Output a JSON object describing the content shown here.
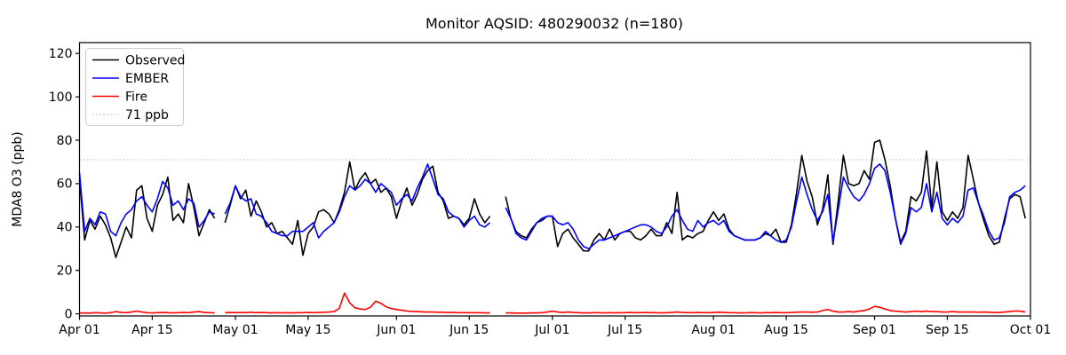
{
  "title": "Monitor AQSID: 480290032 (n=180)",
  "chart_data": {
    "type": "line",
    "title": "Monitor AQSID: 480290032 (n=180)",
    "xlabel": "",
    "ylabel": "MDA8 O3 (ppb)",
    "ylim": [
      -1,
      125
    ],
    "yticks": [
      0,
      20,
      40,
      60,
      80,
      100,
      120
    ],
    "x_total_days": 183,
    "xticks": [
      {
        "day": 0,
        "label": "Apr 01"
      },
      {
        "day": 14,
        "label": "Apr 15"
      },
      {
        "day": 30,
        "label": "May 01"
      },
      {
        "day": 44,
        "label": "May 15"
      },
      {
        "day": 61,
        "label": "Jun 01"
      },
      {
        "day": 75,
        "label": "Jun 15"
      },
      {
        "day": 91,
        "label": "Jul 01"
      },
      {
        "day": 105,
        "label": "Jul 15"
      },
      {
        "day": 122,
        "label": "Aug 01"
      },
      {
        "day": 136,
        "label": "Aug 15"
      },
      {
        "day": 153,
        "label": "Sep 01"
      },
      {
        "day": 167,
        "label": "Sep 15"
      },
      {
        "day": 183,
        "label": "Oct 01"
      }
    ],
    "grid": false,
    "legend_position": "upper left",
    "threshold": {
      "value": 71,
      "label": "71 ppb",
      "color": "#c8c8c8",
      "style": "dotted"
    },
    "legend": [
      {
        "label": "Observed",
        "color": "#000000",
        "dash": "solid"
      },
      {
        "label": "EMBER",
        "color": "#0000ff",
        "dash": "solid"
      },
      {
        "label": "Fire",
        "color": "#ff0000",
        "dash": "solid"
      },
      {
        "label": "71 ppb",
        "color": "#c8c8c8",
        "dash": "dotted"
      }
    ],
    "series": [
      {
        "name": "Observed",
        "color": "#000000",
        "values": [
          62,
          34,
          43,
          39,
          45,
          41,
          35,
          26,
          33,
          40,
          35,
          57,
          59,
          44,
          38,
          50,
          55,
          63,
          43,
          46,
          42,
          60,
          49,
          36,
          42,
          48,
          44,
          null,
          42,
          50,
          59,
          53,
          57,
          45,
          52,
          47,
          40,
          42,
          37,
          38,
          35,
          32,
          43,
          27,
          37,
          40,
          47,
          48,
          46,
          42,
          48,
          56,
          70,
          57,
          62,
          65,
          60,
          62,
          56,
          58,
          54,
          44,
          52,
          58,
          50,
          55,
          62,
          66,
          68,
          56,
          52,
          44,
          45,
          44,
          41,
          44,
          53,
          46,
          42,
          45,
          null,
          null,
          54,
          44,
          38,
          36,
          35,
          39,
          42,
          43,
          45,
          45,
          31,
          37,
          39,
          35,
          32,
          29,
          29,
          34,
          37,
          34,
          39,
          34,
          37,
          38,
          38,
          35,
          34,
          36,
          39,
          36,
          36,
          42,
          37,
          56,
          34,
          36,
          35,
          37,
          38,
          43,
          47,
          43,
          46,
          39,
          36,
          35,
          34,
          34,
          34,
          35,
          37,
          36,
          39,
          33,
          33,
          41,
          56,
          73,
          61,
          54,
          41,
          48,
          64,
          32,
          52,
          73,
          60,
          59,
          60,
          66,
          62,
          79,
          80,
          71,
          59,
          44,
          33,
          38,
          54,
          52,
          56,
          75,
          49,
          70,
          47,
          43,
          47,
          44,
          49,
          73,
          62,
          51,
          43,
          36,
          32,
          33,
          44,
          53,
          55,
          54,
          44
        ]
      },
      {
        "name": "EMBER",
        "color": "#0000ff",
        "values": [
          65,
          38,
          44,
          41,
          47,
          46,
          38,
          36,
          42,
          46,
          48,
          52,
          54,
          50,
          47,
          53,
          61,
          58,
          50,
          52,
          48,
          53,
          51,
          40,
          43,
          47,
          46,
          null,
          46,
          51,
          59,
          54,
          52,
          53,
          46,
          45,
          42,
          38,
          37,
          36,
          36,
          38,
          38,
          38,
          40,
          42,
          35,
          38,
          40,
          42,
          47,
          54,
          59,
          57,
          59,
          62,
          60,
          56,
          60,
          58,
          56,
          50,
          53,
          55,
          52,
          58,
          63,
          69,
          62,
          55,
          53,
          47,
          45,
          44,
          40,
          43,
          45,
          41,
          40,
          42,
          null,
          null,
          49,
          44,
          37,
          35,
          34,
          38,
          42,
          44,
          45,
          45,
          42,
          41,
          42,
          39,
          34,
          31,
          30,
          32,
          34,
          34,
          35,
          36,
          37,
          38,
          39,
          40,
          41,
          41,
          40,
          38,
          37,
          40,
          45,
          48,
          43,
          39,
          38,
          43,
          40,
          42,
          43,
          41,
          43,
          38,
          36,
          35,
          34,
          34,
          34,
          35,
          38,
          36,
          34,
          33,
          34,
          40,
          52,
          63,
          55,
          48,
          43,
          47,
          55,
          33,
          48,
          63,
          58,
          54,
          52,
          55,
          60,
          67,
          69,
          66,
          56,
          44,
          32,
          37,
          49,
          47,
          49,
          60,
          47,
          56,
          44,
          41,
          44,
          42,
          45,
          57,
          58,
          51,
          45,
          38,
          34,
          35,
          42,
          54,
          56,
          57,
          59
        ]
      },
      {
        "name": "Fire",
        "color": "#ff0000",
        "values": [
          0.3,
          0.4,
          0.3,
          0.5,
          0.4,
          0.3,
          0.5,
          1.0,
          0.6,
          0.5,
          0.8,
          1.2,
          0.8,
          0.5,
          0.4,
          0.5,
          0.6,
          0.5,
          0.4,
          0.5,
          0.6,
          0.5,
          0.8,
          1.0,
          0.6,
          0.5,
          0.4,
          null,
          0.5,
          0.6,
          0.5,
          0.6,
          0.5,
          0.7,
          0.5,
          0.6,
          0.5,
          0.4,
          0.5,
          0.4,
          0.5,
          0.4,
          0.5,
          0.5,
          0.6,
          0.5,
          0.6,
          0.7,
          0.8,
          1.0,
          2.5,
          9.5,
          5.0,
          2.8,
          2.2,
          2.0,
          3.0,
          5.8,
          4.8,
          3.2,
          2.4,
          2.0,
          1.6,
          1.3,
          1.1,
          1.0,
          0.9,
          0.8,
          0.8,
          0.7,
          0.7,
          0.6,
          0.6,
          0.5,
          0.5,
          0.5,
          0.5,
          0.5,
          0.4,
          0.4,
          null,
          null,
          0.4,
          0.4,
          0.3,
          0.3,
          0.3,
          0.4,
          0.4,
          0.5,
          0.8,
          1.2,
          0.8,
          0.6,
          0.8,
          0.6,
          0.5,
          0.4,
          0.4,
          0.5,
          0.5,
          0.4,
          0.5,
          0.4,
          0.5,
          0.5,
          0.6,
          0.5,
          0.5,
          0.6,
          0.5,
          0.5,
          0.4,
          0.5,
          0.6,
          0.8,
          0.6,
          0.5,
          0.5,
          0.6,
          0.5,
          0.5,
          0.6,
          0.7,
          0.6,
          0.5,
          0.5,
          0.4,
          0.4,
          0.5,
          0.5,
          0.4,
          0.5,
          0.5,
          0.6,
          0.5,
          0.5,
          0.6,
          0.7,
          0.8,
          0.8,
          0.7,
          0.8,
          1.5,
          2.0,
          1.2,
          0.8,
          0.8,
          1.0,
          0.8,
          1.2,
          1.5,
          2.2,
          3.4,
          3.0,
          2.2,
          1.5,
          1.2,
          1.0,
          0.8,
          1.0,
          1.2,
          1.0,
          1.2,
          1.0,
          1.0,
          0.8,
          0.8,
          1.0,
          0.8,
          0.8,
          0.8,
          0.8,
          0.7,
          0.8,
          0.7,
          0.6,
          0.6,
          0.8,
          1.0,
          1.3,
          1.2,
          0.8
        ]
      }
    ]
  }
}
